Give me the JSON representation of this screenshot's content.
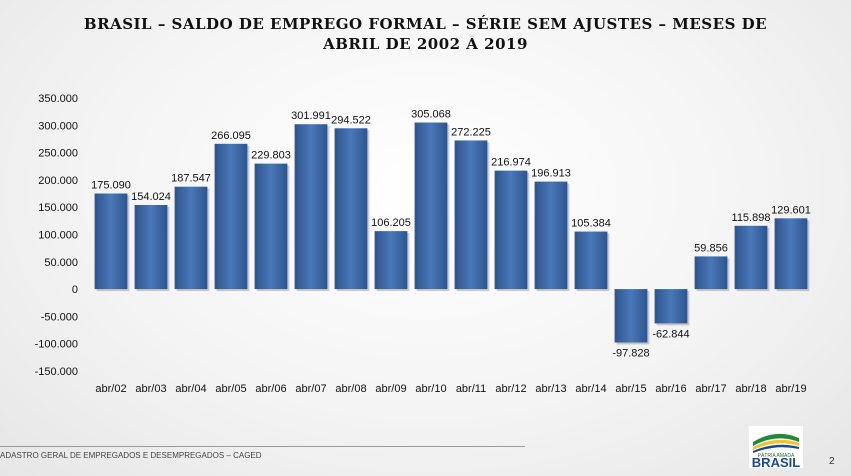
{
  "title": {
    "line1": "BRASIL – SALDO DE EMPREGO FORMAL – SÉRIE SEM AJUSTES – MESES DE",
    "line2": "ABRIL DE 2002 A 2019"
  },
  "footer": {
    "source": "ADASTRO GERAL DE EMPREGADOS E DESEMPREGADOS – CAGED",
    "page_number": "2"
  },
  "logo": {
    "tagline": "PÁTRIA AMADA",
    "brand": "BRASIL",
    "colors": [
      "#1e8a3c",
      "#f2c230",
      "#1c4a8c"
    ]
  },
  "chart_data": {
    "type": "bar",
    "categories": [
      "abr/02",
      "abr/03",
      "abr/04",
      "abr/05",
      "abr/06",
      "abr/07",
      "abr/08",
      "abr/09",
      "abr/10",
      "abr/11",
      "abr/12",
      "abr/13",
      "abr/14",
      "abr/15",
      "abr/16",
      "abr/17",
      "abr/18",
      "abr/19"
    ],
    "values": [
      175090,
      154024,
      187547,
      266095,
      229803,
      301991,
      294522,
      106205,
      305068,
      272225,
      216974,
      196913,
      105384,
      -97828,
      -62844,
      59856,
      115898,
      129601
    ],
    "value_labels": [
      "175.090",
      "154.024",
      "187.547",
      "266.095",
      "229.803",
      "301.991",
      "294.522",
      "106.205",
      "305.068",
      "272.225",
      "216.974",
      "196.913",
      "105.384",
      "-97.828",
      "-62.844",
      "59.856",
      "115.898",
      "129.601"
    ],
    "y_ticks": [
      350000,
      300000,
      250000,
      200000,
      150000,
      100000,
      50000,
      0,
      -50000,
      -100000,
      -150000
    ],
    "y_tick_labels": [
      "350.000",
      "300.000",
      "250.000",
      "200.000",
      "150.000",
      "100.000",
      "50.000",
      "0",
      "-50.000",
      "-100.000",
      "-150.000"
    ],
    "ylim": [
      -150000,
      350000
    ],
    "grid": false,
    "bar_color": "#3f6aa6"
  }
}
